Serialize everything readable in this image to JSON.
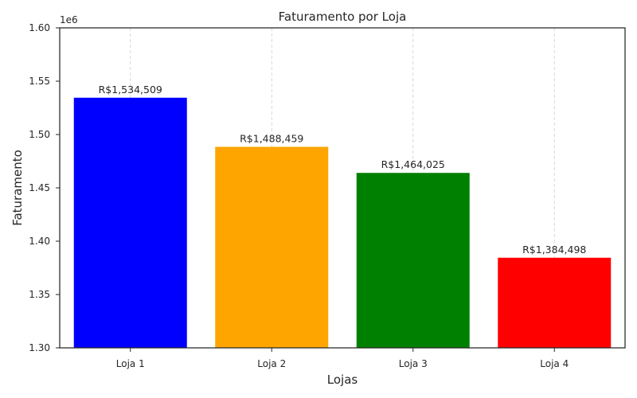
{
  "chart_data": {
    "type": "bar",
    "title": "Faturamento por Loja",
    "xlabel": "Lojas",
    "ylabel": "Faturamento",
    "y_offset_label": "1e6",
    "categories": [
      "Loja 1",
      "Loja 2",
      "Loja 3",
      "Loja 4"
    ],
    "values": [
      1534509,
      1488459,
      1464025,
      1384498
    ],
    "data_labels": [
      "R$1,534,509",
      "R$1,488,459",
      "R$1,464,025",
      "R$1,384,498"
    ],
    "colors": [
      "#0000ff",
      "#ffa500",
      "#008000",
      "#ff0000"
    ],
    "ylim": [
      1300000,
      1600000
    ],
    "yticks": [
      1300000,
      1350000,
      1400000,
      1450000,
      1500000,
      1550000,
      1600000
    ],
    "ytick_labels": [
      "1.30",
      "1.35",
      "1.40",
      "1.45",
      "1.50",
      "1.55",
      "1.60"
    ],
    "grid": "x-dashed"
  }
}
